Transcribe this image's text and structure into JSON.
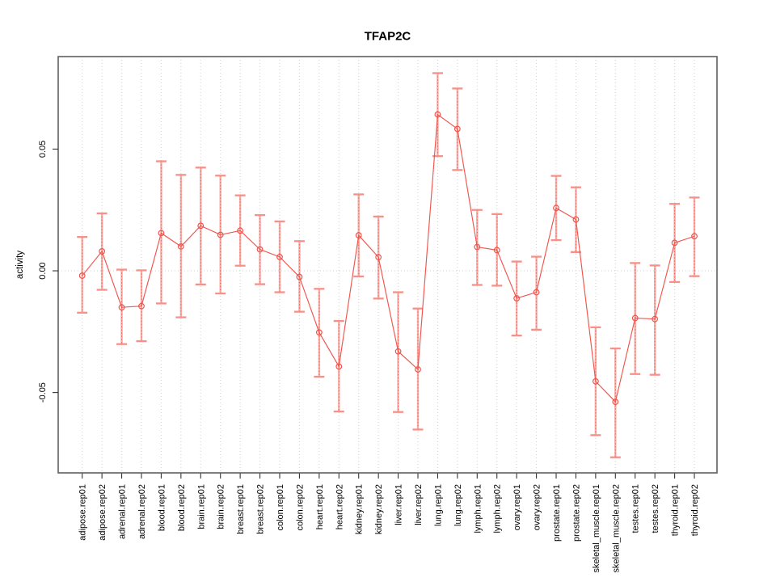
{
  "chart_data": {
    "type": "line",
    "title": "TFAP2C",
    "ylabel": "activity",
    "xlabel": "",
    "legend_position": "none",
    "grid": {
      "vertical_dotted_per_category": true,
      "horizontal_dotted_at_zero": true
    },
    "ylim": [
      -0.083,
      0.088
    ],
    "yticks": [
      {
        "value": 0.05,
        "label": "0.05"
      },
      {
        "value": 0.0,
        "label": "0.00"
      },
      {
        "value": -0.05,
        "label": "-0.05"
      }
    ],
    "categories": [
      "adipose.rep01",
      "adipose.rep02",
      "adrenal.rep01",
      "adrenal.rep02",
      "blood.rep01",
      "blood.rep02",
      "brain.rep01",
      "brain.rep02",
      "breast.rep01",
      "breast.rep02",
      "colon.rep01",
      "colon.rep02",
      "heart.rep01",
      "heart.rep02",
      "kidney.rep01",
      "kidney.rep02",
      "liver.rep01",
      "liver.rep02",
      "lung.rep01",
      "lung.rep02",
      "lymph.rep01",
      "lymph.rep02",
      "ovary.rep01",
      "ovary.rep02",
      "prostate.rep01",
      "prostate.rep02",
      "skeletal_muscle.rep01",
      "skeletal_muscle.rep02",
      "testes.rep01",
      "testes.rep02",
      "thyroid.rep01",
      "thyroid.rep02"
    ],
    "series": [
      {
        "name": "activity",
        "marker": "open-circle",
        "values": [
          -0.002,
          0.008,
          -0.015,
          -0.0145,
          0.0155,
          0.01,
          0.0185,
          0.0148,
          0.0165,
          0.0088,
          0.0057,
          -0.0025,
          -0.0253,
          -0.0393,
          0.0146,
          0.0056,
          -0.0331,
          -0.0405,
          0.0642,
          0.0583,
          0.0098,
          0.0085,
          -0.0113,
          -0.0088,
          0.0258,
          0.0211,
          -0.0454,
          -0.0538,
          -0.0194,
          -0.0198,
          0.0115,
          0.0142
        ],
        "error_low": [
          -0.0172,
          -0.0078,
          -0.0301,
          -0.0289,
          -0.0134,
          -0.0191,
          -0.0056,
          -0.0093,
          0.0021,
          -0.0055,
          -0.0088,
          -0.0168,
          -0.0435,
          -0.0578,
          -0.0023,
          -0.0114,
          -0.058,
          -0.0652,
          0.0471,
          0.0414,
          -0.0058,
          -0.0061,
          -0.0266,
          -0.0242,
          0.0126,
          0.0077,
          -0.0675,
          -0.0766,
          -0.0424,
          -0.0427,
          -0.0046,
          -0.0022
        ],
        "error_high": [
          0.0139,
          0.0236,
          0.0005,
          0.0002,
          0.045,
          0.0394,
          0.0424,
          0.0391,
          0.031,
          0.0229,
          0.0203,
          0.0122,
          -0.0074,
          -0.0206,
          0.0314,
          0.0223,
          -0.0088,
          -0.0155,
          0.0812,
          0.0749,
          0.025,
          0.0233,
          0.0038,
          0.0058,
          0.039,
          0.0343,
          -0.0232,
          -0.0319,
          0.0032,
          0.0022,
          0.0275,
          0.0301
        ]
      }
    ],
    "colors": {
      "series_line": "#f0544c",
      "marker_stroke": "#f0544c",
      "error_bar_fill": "#f79f98",
      "error_bar_cap": "#f79089",
      "error_bar_dots": "#ef4840",
      "gridline": "#d0d0d0",
      "plot_border": "#5f5f5f",
      "tick": "#333333",
      "text": "#000000",
      "background": "#ffffff"
    }
  }
}
